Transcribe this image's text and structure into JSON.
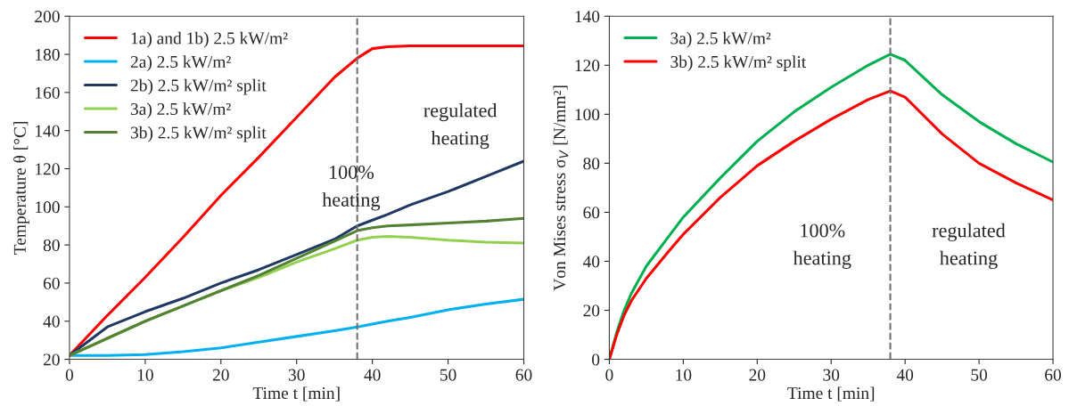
{
  "chart_data": [
    {
      "type": "line",
      "xlabel": "Time t [min]",
      "ylabel": "Temperature θ [°C]",
      "xlim": [
        0,
        60
      ],
      "xticks": [
        0,
        10,
        20,
        30,
        40,
        50,
        60
      ],
      "ylim": [
        20,
        200
      ],
      "yticks": [
        20,
        40,
        60,
        80,
        100,
        120,
        140,
        160,
        180,
        200
      ],
      "grid": false,
      "legend": "top left",
      "x": [
        0,
        5,
        10,
        15,
        20,
        25,
        30,
        35,
        38,
        40,
        42,
        45,
        50,
        55,
        60
      ],
      "series": [
        {
          "name": "1a) and 1b) 2.5 kW/m²",
          "color": "#ff0000",
          "values": [
            22,
            43,
            63,
            84,
            106,
            126,
            147,
            168,
            178,
            183,
            184,
            184.5,
            184.5,
            184.5,
            184.5
          ]
        },
        {
          "name": "2a) 2.5 kW/m²",
          "color": "#00b0f0",
          "values": [
            22,
            22,
            22.5,
            24,
            26,
            29,
            32,
            35,
            37,
            38.5,
            40,
            42,
            46,
            49,
            51.5
          ]
        },
        {
          "name": "2b) 2.5 kW/m² split",
          "color": "#1f3864",
          "values": [
            22,
            37,
            45,
            52,
            60,
            67,
            75,
            83,
            90,
            93,
            96,
            101,
            108,
            116,
            124
          ]
        },
        {
          "name": "3a) 2.5 kW/m²",
          "color": "#92d050",
          "values": [
            22,
            31,
            40,
            48,
            56,
            63,
            71,
            78,
            82.5,
            84,
            84.5,
            84,
            82.5,
            81.5,
            81
          ]
        },
        {
          "name": "3b) 2.5 kW/m² split",
          "color": "#548235",
          "values": [
            22,
            31,
            40,
            48,
            56,
            64,
            73,
            82,
            87.5,
            89,
            90,
            90.5,
            91.5,
            92.5,
            94
          ]
        }
      ],
      "ref_lines": [
        {
          "axis": "x",
          "value": 38,
          "color": "#707070",
          "line_style": "dashed"
        }
      ],
      "annotations": [
        "100%\nheating",
        "regulated\nheating"
      ]
    },
    {
      "type": "line",
      "xlabel": "Time t [min]",
      "ylabel": "Von Mises stress σ$_{V}$ [N/mm²]",
      "xlim": [
        0,
        60
      ],
      "xticks": [
        0,
        10,
        20,
        30,
        40,
        50,
        60
      ],
      "ylim": [
        0,
        140
      ],
      "yticks": [
        0,
        20,
        40,
        60,
        80,
        100,
        120,
        140
      ],
      "grid": false,
      "legend": "top left",
      "x": [
        0,
        1,
        2,
        3,
        5,
        8,
        10,
        15,
        20,
        25,
        30,
        35,
        38,
        40,
        45,
        50,
        55,
        60
      ],
      "series": [
        {
          "name": "3a) 2.5 kW/m²",
          "color": "#00b050",
          "values": [
            0,
            11,
            20,
            27,
            38,
            50,
            58,
            74,
            89,
            101,
            111,
            120,
            124.5,
            122,
            108,
            97,
            88,
            80.5
          ]
        },
        {
          "name": "3b) 2.5 kW/m² split",
          "color": "#ff0000",
          "values": [
            0,
            10,
            18,
            24,
            33,
            44,
            51,
            66,
            79,
            89,
            98,
            106,
            109.5,
            107,
            92,
            80,
            72,
            65
          ]
        }
      ],
      "ref_lines": [
        {
          "axis": "x",
          "value": 38,
          "color": "#707070",
          "line_style": "dashed"
        }
      ],
      "annotations": [
        "100%\nheating",
        "regulated\nheating"
      ]
    }
  ]
}
